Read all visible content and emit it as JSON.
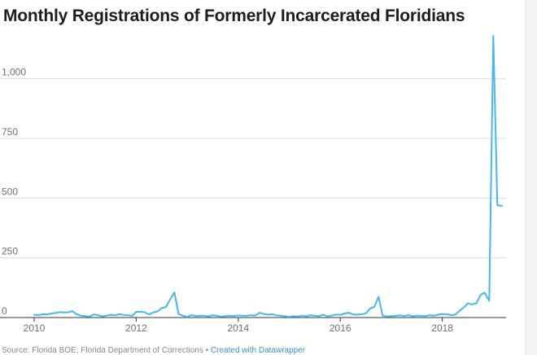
{
  "chart_data": {
    "type": "line",
    "title": "Monthly Registrations of Formerly Incarcerated Floridians",
    "xlabel": "",
    "ylabel": "",
    "xlim": [
      2010.0,
      2019.25
    ],
    "ylim": [
      0,
      1200
    ],
    "x_ticks": [
      2010,
      2012,
      2014,
      2016,
      2018
    ],
    "x_tick_labels": [
      "2010",
      "2012",
      "2014",
      "2016",
      "2018"
    ],
    "y_ticks": [
      0,
      250,
      500,
      750,
      1000
    ],
    "y_tick_labels": [
      "0",
      "250",
      "500",
      "750",
      "1,000"
    ],
    "grid": true,
    "legend": "none",
    "line_color": "#45b8f0",
    "series": [
      {
        "x": [
          2010.0,
          2010.08,
          2010.17,
          2010.25,
          2010.33,
          2010.42,
          2010.5,
          2010.58,
          2010.67,
          2010.75,
          2010.83,
          2010.92,
          2011.0,
          2011.08,
          2011.17,
          2011.25,
          2011.33,
          2011.42,
          2011.5,
          2011.58,
          2011.67,
          2011.75,
          2011.83,
          2011.92,
          2012.0,
          2012.08,
          2012.17,
          2012.25,
          2012.33,
          2012.42,
          2012.5,
          2012.58,
          2012.67,
          2012.75,
          2012.83,
          2012.92,
          2013.0,
          2013.08,
          2013.17,
          2013.25,
          2013.33,
          2013.42,
          2013.5,
          2013.58,
          2013.67,
          2013.75,
          2013.83,
          2013.92,
          2014.0,
          2014.08,
          2014.17,
          2014.25,
          2014.33,
          2014.42,
          2014.5,
          2014.58,
          2014.67,
          2014.75,
          2014.83,
          2014.92,
          2015.0,
          2015.08,
          2015.17,
          2015.25,
          2015.33,
          2015.42,
          2015.5,
          2015.58,
          2015.67,
          2015.75,
          2015.83,
          2015.92,
          2016.0,
          2016.08,
          2016.17,
          2016.25,
          2016.33,
          2016.42,
          2016.5,
          2016.58,
          2016.67,
          2016.75,
          2016.83,
          2016.92,
          2017.0,
          2017.08,
          2017.17,
          2017.25,
          2017.33,
          2017.42,
          2017.5,
          2017.58,
          2017.67,
          2017.75,
          2017.83,
          2017.92,
          2018.0,
          2018.08,
          2018.17,
          2018.25,
          2018.33,
          2018.42,
          2018.5,
          2018.58,
          2018.67,
          2018.75,
          2018.83,
          2018.92,
          2019.0,
          2019.08,
          2019.17
        ],
        "values": [
          12,
          10,
          14,
          13,
          17,
          19,
          23,
          21,
          22,
          27,
          14,
          8,
          6,
          4,
          13,
          10,
          5,
          8,
          12,
          9,
          14,
          11,
          10,
          7,
          24,
          24,
          22,
          13,
          21,
          26,
          40,
          44,
          78,
          105,
          15,
          7,
          3,
          10,
          6,
          8,
          7,
          5,
          10,
          7,
          4,
          6,
          8,
          6,
          9,
          8,
          7,
          10,
          8,
          20,
          15,
          12,
          14,
          9,
          7,
          5,
          3,
          6,
          4,
          8,
          5,
          10,
          7,
          6,
          12,
          5,
          8,
          13,
          11,
          17,
          20,
          13,
          12,
          14,
          17,
          37,
          45,
          87,
          8,
          4,
          6,
          7,
          9,
          6,
          10,
          5,
          8,
          7,
          6,
          10,
          7,
          12,
          15,
          14,
          10,
          12,
          27,
          42,
          60,
          55,
          60,
          95,
          104,
          70,
          1180,
          470,
          468
        ]
      }
    ]
  },
  "footer": {
    "source": "Source: Florida BOE; Florida Department of Corrections • ",
    "credit": "Created with Datawrapper"
  }
}
